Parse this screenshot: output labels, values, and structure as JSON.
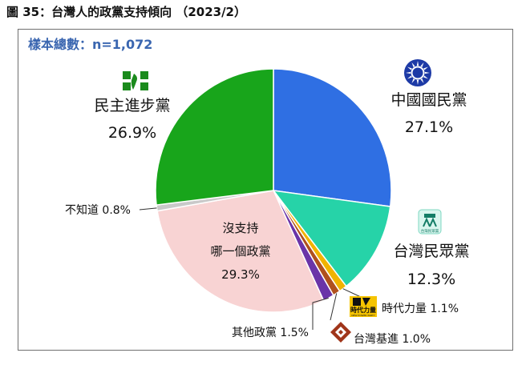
{
  "title": "圖 35：台灣人的政黨支持傾向 （2023/2）",
  "sample": "樣本總數：n=1,072",
  "colors": {
    "kmt": "#2f6fe3",
    "tpp": "#26d3a8",
    "npp": "#f1b300",
    "tsp": "#b0501e",
    "other": "#6a34a8",
    "none": "#f8d3d3",
    "unknown": "#c9c9c9",
    "dpp": "#18a51b"
  },
  "chart_data": {
    "type": "pie",
    "title": "",
    "slices": [
      {
        "key": "kmt",
        "label": "中國國民黨",
        "value": 27.1,
        "pct_label": "27.1%"
      },
      {
        "key": "tpp",
        "label": "台灣民眾黨",
        "value": 12.3,
        "pct_label": "12.3%"
      },
      {
        "key": "npp",
        "label": "時代力量",
        "value": 1.1,
        "pct_label": "1.1%"
      },
      {
        "key": "tsp",
        "label": "台灣基進",
        "value": 1.0,
        "pct_label": "1.0%"
      },
      {
        "key": "other",
        "label": "其他政黨",
        "value": 1.5,
        "pct_label": "1.5%"
      },
      {
        "key": "none",
        "label": "沒支持哪一個政黨",
        "label_lines": [
          "沒支持",
          "哪一個政黨"
        ],
        "value": 29.3,
        "pct_label": "29.3%"
      },
      {
        "key": "unknown",
        "label": "不知道",
        "value": 0.8,
        "pct_label": "0.8%"
      },
      {
        "key": "dpp",
        "label": "民主進步黨",
        "value": 26.9,
        "pct_label": "26.9%"
      }
    ]
  },
  "logos": {
    "kmt": "kmt-sun-logo",
    "tpp": "tpp-logo",
    "tpp_text": "台灣民眾黨",
    "npp": "npp-logo",
    "npp_text": "時代力量",
    "npp_sub": "NEW POWER PARTY",
    "tsp": "tsp-logo",
    "dpp": "dpp-logo"
  }
}
